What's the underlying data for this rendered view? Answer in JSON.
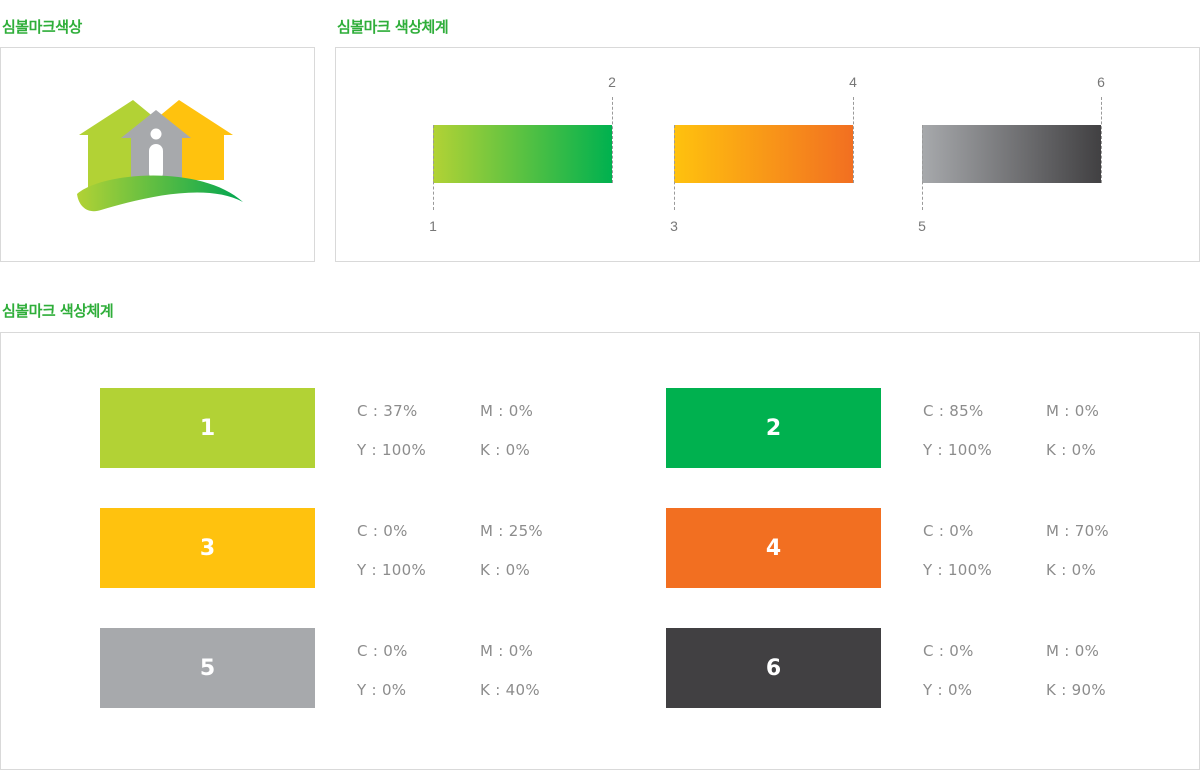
{
  "titles": {
    "symbol_color": "심볼마크색상",
    "color_system_top": "심볼마크 색상체계",
    "color_system_bottom": "심볼마크 색상체계"
  },
  "gradients": [
    {
      "from_label": "1",
      "to_label": "2",
      "from": "#b2d235",
      "to": "#00b14f"
    },
    {
      "from_label": "3",
      "to_label": "4",
      "from": "#ffc20e",
      "to": "#f26f21"
    },
    {
      "from_label": "5",
      "to_label": "6",
      "from": "#a7a9ac",
      "to": "#414042"
    }
  ],
  "swatches": [
    {
      "number": "1",
      "color": "#b2d235",
      "c": "C : 37%",
      "m": "M : 0%",
      "y": "Y : 100%",
      "k": "K : 0%"
    },
    {
      "number": "2",
      "color": "#00b14f",
      "c": "C : 85%",
      "m": "M : 0%",
      "y": "Y : 100%",
      "k": "K : 0%"
    },
    {
      "number": "3",
      "color": "#ffc20e",
      "c": "C : 0%",
      "m": "M : 25%",
      "y": "Y : 100%",
      "k": "K : 0%"
    },
    {
      "number": "4",
      "color": "#f26f21",
      "c": "C : 0%",
      "m": "M : 70%",
      "y": "Y : 100%",
      "k": "K : 0%"
    },
    {
      "number": "5",
      "color": "#a7a9ac",
      "c": "C : 0%",
      "m": "M : 0%",
      "y": "Y : 0%",
      "k": "K : 40%"
    },
    {
      "number": "6",
      "color": "#414042",
      "c": "C : 0%",
      "m": "M : 0%",
      "y": "Y : 0%",
      "k": "K : 90%"
    }
  ],
  "colors": {
    "accent": "#2fae3a",
    "border": "#d9d9d9"
  }
}
